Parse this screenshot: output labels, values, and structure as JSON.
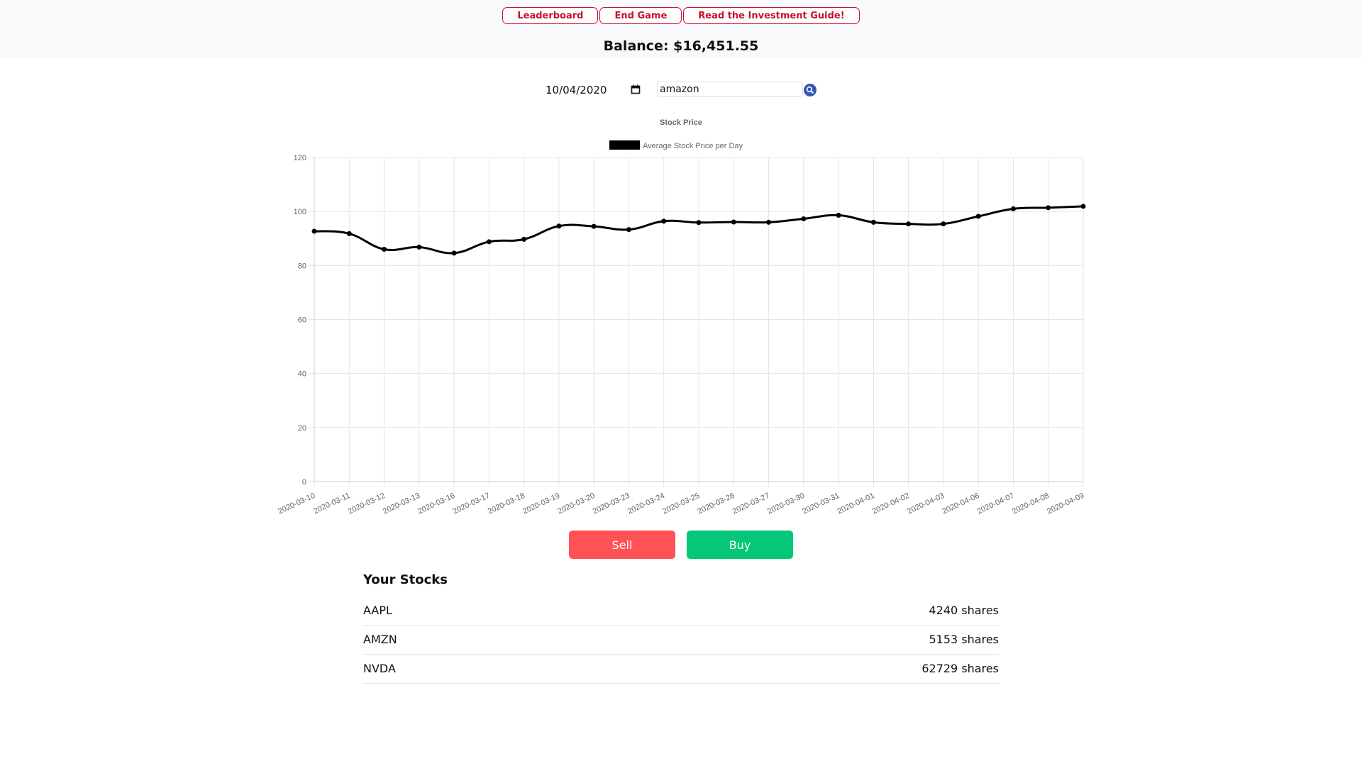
{
  "nav": {
    "leaderboard": "Leaderboard",
    "end_game": "End Game",
    "guide": "Read the Investment Guide!"
  },
  "balance": "Balance: $16,451.55",
  "controls": {
    "date_value": "10/04/2020",
    "search_value": "amazon",
    "calendar_icon": "calendar-icon",
    "search_icon": "search-icon"
  },
  "chart_data": {
    "type": "line",
    "title": "Stock Price",
    "legend": "Average Stock Price per Day",
    "legend_position": "top",
    "grid": true,
    "ylim": [
      0,
      120
    ],
    "yticks": [
      0,
      20,
      40,
      60,
      80,
      100,
      120
    ],
    "x": [
      "2020-03-10",
      "2020-03-11",
      "2020-03-12",
      "2020-03-13",
      "2020-03-16",
      "2020-03-17",
      "2020-03-18",
      "2020-03-19",
      "2020-03-20",
      "2020-03-23",
      "2020-03-24",
      "2020-03-25",
      "2020-03-26",
      "2020-03-27",
      "2020-03-30",
      "2020-03-31",
      "2020-04-01",
      "2020-04-02",
      "2020-04-03",
      "2020-04-06",
      "2020-04-07",
      "2020-04-08",
      "2020-04-09"
    ],
    "series": [
      {
        "name": "Average Stock Price per Day",
        "color": "#000000",
        "values": [
          92.7,
          91.8,
          86.0,
          86.8,
          84.6,
          88.8,
          89.7,
          94.6,
          94.5,
          93.3,
          96.4,
          95.9,
          96.1,
          96.0,
          97.3,
          98.6,
          96.0,
          95.4,
          95.4,
          98.2,
          101.0,
          101.4,
          101.9
        ]
      }
    ]
  },
  "actions": {
    "sell": "Sell",
    "buy": "Buy"
  },
  "stocks": {
    "heading": "Your Stocks",
    "items": [
      {
        "symbol": "AAPL",
        "shares": "4240 shares"
      },
      {
        "symbol": "AMZN",
        "shares": "5153 shares"
      },
      {
        "symbol": "NVDA",
        "shares": "62729 shares"
      }
    ]
  }
}
